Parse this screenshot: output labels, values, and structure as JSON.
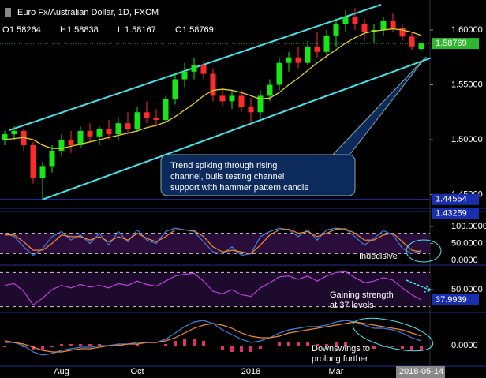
{
  "chart_data": [
    {
      "type": "candlestick",
      "title": "Euro Fx/Australian Dollar, 1D, FXCM",
      "header_labels": [
        "O",
        "H",
        "L",
        "C"
      ],
      "categories": [
        null,
        null,
        null,
        null,
        null,
        null,
        "Aug",
        null,
        null,
        null,
        null,
        null,
        null,
        null,
        "Oct",
        null,
        null,
        null,
        null,
        null,
        null,
        null,
        null,
        null,
        null,
        null,
        "2018",
        null,
        null,
        null,
        null,
        null,
        null,
        null,
        null,
        "Mar",
        null,
        null,
        null,
        null,
        null,
        null,
        null,
        null,
        "2018-05-14"
      ],
      "open": [
        1.5,
        1.505,
        1.508,
        1.495,
        1.465,
        1.476,
        1.49,
        1.5,
        1.495,
        1.508,
        1.503,
        1.51,
        1.505,
        1.515,
        1.51,
        1.525,
        1.52,
        1.518,
        1.537,
        1.555,
        1.562,
        1.568,
        1.56,
        1.54,
        1.535,
        1.54,
        1.53,
        1.525,
        1.54,
        1.55,
        1.57,
        1.575,
        1.57,
        1.585,
        1.58,
        1.595,
        1.605,
        1.612,
        1.605,
        1.598,
        1.6,
        1.608,
        1.602,
        1.594,
        1.58264
      ],
      "high": [
        1.508,
        1.512,
        1.51,
        1.498,
        1.48,
        1.495,
        1.505,
        1.508,
        1.512,
        1.515,
        1.512,
        1.518,
        1.52,
        1.525,
        1.53,
        1.535,
        1.528,
        1.54,
        1.56,
        1.57,
        1.575,
        1.572,
        1.565,
        1.548,
        1.545,
        1.545,
        1.538,
        1.545,
        1.555,
        1.575,
        1.58,
        1.585,
        1.59,
        1.598,
        1.6,
        1.61,
        1.618,
        1.62,
        1.61,
        1.605,
        1.612,
        1.615,
        1.606,
        1.598,
        1.58838
      ],
      "low": [
        1.495,
        1.5,
        1.49,
        1.46,
        1.4455,
        1.47,
        1.485,
        1.488,
        1.492,
        1.498,
        1.495,
        1.5,
        1.5,
        1.505,
        1.507,
        1.515,
        1.512,
        1.515,
        1.532,
        1.548,
        1.555,
        1.555,
        1.535,
        1.53,
        1.528,
        1.525,
        1.515,
        1.52,
        1.535,
        1.545,
        1.562,
        1.565,
        1.568,
        1.575,
        1.575,
        1.585,
        1.598,
        1.6,
        1.59,
        1.588,
        1.595,
        1.598,
        1.59,
        1.582,
        1.58167
      ],
      "close": [
        1.505,
        1.508,
        1.495,
        1.465,
        1.476,
        1.49,
        1.5,
        1.495,
        1.508,
        1.503,
        1.51,
        1.505,
        1.515,
        1.51,
        1.525,
        1.52,
        1.518,
        1.537,
        1.555,
        1.562,
        1.568,
        1.56,
        1.54,
        1.535,
        1.54,
        1.53,
        1.525,
        1.54,
        1.55,
        1.57,
        1.575,
        1.57,
        1.585,
        1.58,
        1.595,
        1.605,
        1.612,
        1.605,
        1.598,
        1.6,
        1.608,
        1.602,
        1.594,
        1.585,
        1.58769
      ],
      "up_color": "#19e619",
      "down_color": "#ff2a2a",
      "ma": {
        "color": "#e6d21e",
        "values": [
          1.5,
          1.501,
          1.502,
          1.5,
          1.495,
          1.492,
          1.492,
          1.494,
          1.496,
          1.498,
          1.5,
          1.502,
          1.504,
          1.506,
          1.508,
          1.511,
          1.513,
          1.516,
          1.521,
          1.527,
          1.533,
          1.54,
          1.545,
          1.546,
          1.545,
          1.543,
          1.54,
          1.537,
          1.538,
          1.543,
          1.55,
          1.556,
          1.563,
          1.57,
          1.576,
          1.582,
          1.588,
          1.593,
          1.597,
          1.599,
          1.6,
          1.601,
          1.6,
          1.598,
          1.595
        ]
      },
      "channels": {
        "color": "#3ee6f0",
        "lines": [
          {
            "x": [
              0.5,
              39.75
            ],
            "y": [
              1.5087,
              1.623
            ]
          },
          {
            "x": [
              4,
              45
            ],
            "y": [
              1.4455,
              1.5745
            ]
          }
        ]
      },
      "tags": [
        {
          "value": 1.44554,
          "color": "#1a2fb0"
        },
        {
          "value": 1.43259,
          "color": "#1a2fb0"
        }
      ],
      "last_color": "#2db82d",
      "ylim": [
        1.4389,
        1.6273
      ],
      "yticks": [
        {
          "value": 1.45,
          "label": "1.45000"
        },
        {
          "value": 1.5,
          "label": "1.50000"
        },
        {
          "value": 1.55,
          "label": "1.55000"
        },
        {
          "value": 1.6,
          "label": "1.60000"
        }
      ],
      "annotation": [
        "Trend spiking through rising",
        "channel, bulls testing channel",
        "support with hammer pattern candle"
      ]
    },
    {
      "type": "line",
      "series": [
        {
          "color": "#3d7fe0",
          "values": [
            80,
            70,
            40,
            15,
            35,
            70,
            85,
            60,
            75,
            50,
            80,
            45,
            85,
            55,
            90,
            60,
            50,
            85,
            95,
            90,
            85,
            55,
            25,
            20,
            40,
            15,
            20,
            70,
            85,
            95,
            90,
            70,
            90,
            60,
            90,
            95,
            92,
            70,
            45,
            65,
            88,
            75,
            35,
            20,
            30
          ]
        },
        {
          "color": "#f08a2a",
          "values": [
            75,
            75,
            55,
            30,
            30,
            50,
            75,
            70,
            70,
            60,
            70,
            55,
            70,
            60,
            80,
            65,
            55,
            70,
            90,
            90,
            88,
            70,
            40,
            25,
            30,
            25,
            20,
            45,
            75,
            90,
            92,
            80,
            85,
            70,
            80,
            92,
            93,
            80,
            60,
            60,
            75,
            80,
            55,
            30,
            25
          ]
        }
      ],
      "fill": "#2a0d3a",
      "levels": [
        80,
        20
      ],
      "ylim": [
        -11.6,
        139.5
      ],
      "yticks": [
        {
          "value": 0,
          "label": "0.0000"
        },
        {
          "value": 50,
          "label": "50.0000"
        },
        {
          "value": 100,
          "label": "100.0000"
        }
      ],
      "annotation": [
        "Indecisive"
      ]
    },
    {
      "type": "line",
      "series": [
        {
          "color": "#c040e0",
          "values": [
            55,
            57,
            48,
            32,
            40,
            50,
            55,
            52,
            56,
            53,
            55,
            52,
            57,
            55,
            60,
            56,
            54,
            60,
            66,
            68,
            69,
            60,
            48,
            45,
            50,
            44,
            42,
            52,
            58,
            65,
            66,
            62,
            66,
            60,
            66,
            70,
            71,
            64,
            58,
            60,
            64,
            61,
            52,
            44,
            37.9939
          ]
        }
      ],
      "fill": "#1e0a2c",
      "levels": [
        70,
        30
      ],
      "ylim": [
        24.1,
        76.8
      ],
      "yticks": [
        {
          "value": 50,
          "label": "50.0000"
        }
      ],
      "annotation": [
        "Gaining strength",
        "at 37 levels"
      ]
    },
    {
      "type": "macd",
      "series": [
        {
          "color": "#3d7fe0",
          "values": [
            0.002,
            0.002,
            0.0,
            -0.004,
            -0.006,
            -0.005,
            -0.003,
            -0.002,
            -0.001,
            -0.001,
            0.0,
            0.0,
            0.001,
            0.001,
            0.002,
            0.002,
            0.002,
            0.004,
            0.008,
            0.012,
            0.015,
            0.016,
            0.014,
            0.01,
            0.007,
            0.004,
            0.002,
            0.003,
            0.005,
            0.008,
            0.01,
            0.011,
            0.012,
            0.012,
            0.013,
            0.015,
            0.016,
            0.015,
            0.013,
            0.011,
            0.011,
            0.01,
            0.008,
            0.005,
            0.003
          ]
        },
        {
          "color": "#f08a2a",
          "values": [
            0.003,
            0.002,
            0.001,
            -0.001,
            -0.003,
            -0.004,
            -0.004,
            -0.003,
            -0.002,
            -0.002,
            -0.001,
            0.0,
            0.0,
            0.001,
            0.001,
            0.002,
            0.002,
            0.003,
            0.005,
            0.008,
            0.011,
            0.013,
            0.014,
            0.013,
            0.011,
            0.008,
            0.006,
            0.005,
            0.005,
            0.006,
            0.008,
            0.009,
            0.01,
            0.011,
            0.012,
            0.013,
            0.014,
            0.015,
            0.014,
            0.013,
            0.012,
            0.011,
            0.01,
            0.008,
            0.006
          ]
        }
      ],
      "histogram": {
        "up_color": "#e0306a",
        "down_color": "#e0306a",
        "values": [
          -0.001,
          0,
          -0.001,
          -0.003,
          -0.003,
          -0.001,
          0.001,
          0.001,
          0.001,
          0.001,
          0.001,
          0,
          0.001,
          0,
          0.001,
          0,
          0,
          0.001,
          0.003,
          0.004,
          0.004,
          0.003,
          0,
          -0.003,
          -0.004,
          -0.004,
          -0.004,
          -0.002,
          0,
          0.002,
          0.002,
          0.002,
          0.002,
          0.001,
          0.001,
          0.002,
          0.002,
          0,
          -0.001,
          -0.002,
          -0.001,
          -0.001,
          -0.002,
          -0.003,
          -0.003
        ]
      },
      "ylim": [
        -0.012,
        0.02
      ],
      "yticks": [
        {
          "value": 0,
          "label": "0.0000"
        }
      ],
      "annotation": [
        "Downswings to",
        "prolong further"
      ]
    }
  ]
}
